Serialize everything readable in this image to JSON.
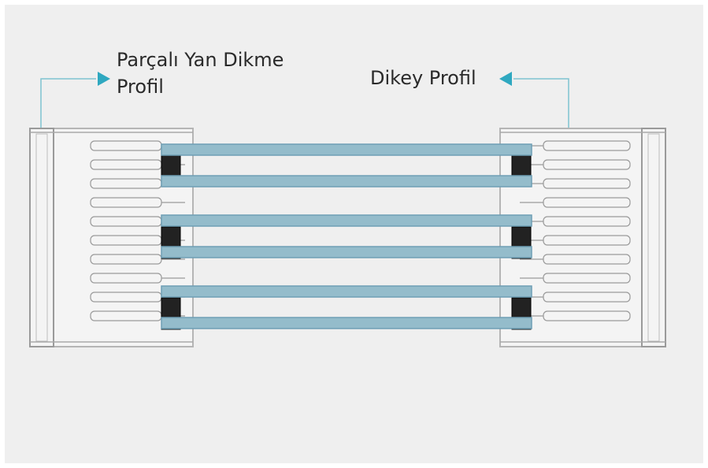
{
  "labels": {
    "left": [
      "Parçalı Yan Dikme",
      "Profil"
    ],
    "right": "Dikey Profil"
  }
}
